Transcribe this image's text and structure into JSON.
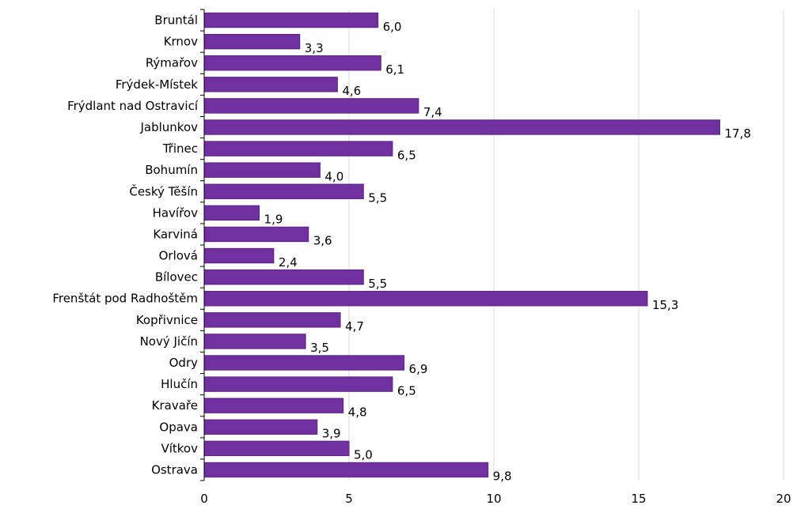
{
  "chart_data": {
    "type": "bar",
    "orientation": "horizontal",
    "categories": [
      "Bruntál",
      "Krnov",
      "Rýmařov",
      "Frýdek-Místek",
      "Frýdlant nad Ostravicí",
      "Jablunkov",
      "Třinec",
      "Bohumín",
      "Český Těšín",
      "Havířov",
      "Karviná",
      "Orlová",
      "Bílovec",
      "Frenštát pod Radhoštěm",
      "Kopřivnice",
      "Nový Jičín",
      "Odry",
      "Hlučín",
      "Kravaře",
      "Opava",
      "Vítkov",
      "Ostrava"
    ],
    "values": [
      6.0,
      3.3,
      6.1,
      4.6,
      7.4,
      17.8,
      6.5,
      4.0,
      5.5,
      1.9,
      3.6,
      2.4,
      5.5,
      15.3,
      4.7,
      3.5,
      6.9,
      6.5,
      4.8,
      3.9,
      5.0,
      9.8
    ],
    "value_labels": [
      "6,0",
      "3,3",
      "6,1",
      "4,6",
      "7,4",
      "17,8",
      "6,5",
      "4,0",
      "5,5",
      "1,9",
      "3,6",
      "2,4",
      "5,5",
      "15,3",
      "4,7",
      "3,5",
      "6,9",
      "6,5",
      "4,8",
      "3,9",
      "5,0",
      "9,8"
    ],
    "x_ticks": [
      0,
      5,
      10,
      15,
      20
    ],
    "x_tick_labels": [
      "0",
      "5",
      "10",
      "15",
      "20"
    ],
    "xlim": [
      0,
      20
    ],
    "title": "",
    "xlabel": "",
    "ylabel": "",
    "grid": "vertical",
    "legend": "none",
    "bar_color": "#7030a0",
    "bar_edge_color": "#5a2683",
    "gridline_color": "#d9d9d9"
  }
}
